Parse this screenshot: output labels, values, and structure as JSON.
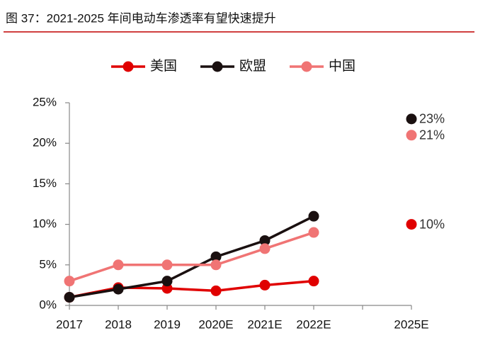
{
  "chart_data": {
    "type": "line",
    "title": "图 37：2021-2025 年间电动车渗透率有望快速提升",
    "categories": [
      "2017",
      "2018",
      "2019",
      "2020E",
      "2021E",
      "2022E",
      null,
      "2025E"
    ],
    "series": [
      {
        "name": "美国",
        "color": "#e00000",
        "values": [
          1,
          2.2,
          2.1,
          1.8,
          2.5,
          3,
          null,
          10
        ],
        "value_labels": [
          null,
          null,
          null,
          null,
          null,
          null,
          null,
          "10%"
        ]
      },
      {
        "name": "欧盟",
        "color": "#1a1010",
        "values": [
          1,
          2,
          3,
          6,
          8,
          11,
          null,
          23
        ],
        "value_labels": [
          null,
          null,
          null,
          null,
          null,
          null,
          null,
          "23%"
        ]
      },
      {
        "name": "中国",
        "color": "#f07474",
        "values": [
          3,
          5,
          5,
          5,
          7,
          9,
          null,
          21
        ],
        "value_labels": [
          null,
          null,
          null,
          null,
          null,
          null,
          null,
          "21%"
        ]
      }
    ],
    "ylim": [
      0,
      25
    ],
    "yticks": [
      {
        "value": 0,
        "label": "0%"
      },
      {
        "value": 5,
        "label": "5%"
      },
      {
        "value": 10,
        "label": "10%"
      },
      {
        "value": 15,
        "label": "15%"
      },
      {
        "value": 20,
        "label": "20%"
      },
      {
        "value": 25,
        "label": "25%"
      }
    ],
    "legend": "top"
  }
}
